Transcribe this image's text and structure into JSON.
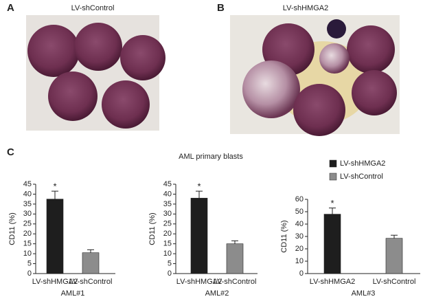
{
  "panels": {
    "a": {
      "label": "A",
      "title": "LV-shControl"
    },
    "b": {
      "label": "B",
      "title": "LV-shHMGA2"
    },
    "c": {
      "label": "C",
      "title": "AML primary blasts"
    }
  },
  "chart_data": [
    {
      "type": "bar",
      "ylabel": "CD11 (%)",
      "xlabel": "AML#1",
      "categories": [
        "LV-shHMGA2",
        "LV-shControl"
      ],
      "values": [
        37.5,
        10.5
      ],
      "errors": [
        4,
        1.5
      ],
      "colors": [
        "#1e1e1e",
        "#8c8c8c"
      ],
      "ylim": [
        0,
        45
      ],
      "yticks": [
        0,
        5,
        10,
        15,
        20,
        25,
        30,
        35,
        40,
        45
      ],
      "annotation": {
        "text": "*",
        "index": 0
      }
    },
    {
      "type": "bar",
      "ylabel": "CD11 (%)",
      "xlabel": "AML#2",
      "categories": [
        "LV-shHMGA2",
        "LV-shControl"
      ],
      "values": [
        38,
        15
      ],
      "errors": [
        3.5,
        1.5
      ],
      "colors": [
        "#1e1e1e",
        "#8c8c8c"
      ],
      "ylim": [
        0,
        45
      ],
      "yticks": [
        0,
        5,
        10,
        15,
        20,
        25,
        30,
        35,
        40,
        45
      ],
      "annotation": {
        "text": "*",
        "index": 0
      }
    },
    {
      "type": "bar",
      "ylabel": "CD11 (%)",
      "xlabel": "AML#3",
      "categories": [
        "LV-shHMGA2",
        "LV-shControl"
      ],
      "values": [
        48,
        28.5
      ],
      "errors": [
        5,
        2.5
      ],
      "colors": [
        "#1e1e1e",
        "#8c8c8c"
      ],
      "ylim": [
        0,
        60
      ],
      "yticks": [
        0,
        10,
        20,
        30,
        40,
        50,
        60
      ],
      "annotation": {
        "text": "*",
        "index": 0
      },
      "legend": [
        {
          "name": "LV-shHMGA2",
          "color": "#1e1e1e"
        },
        {
          "name": "LV-shControl",
          "color": "#8c8c8c"
        }
      ]
    }
  ]
}
